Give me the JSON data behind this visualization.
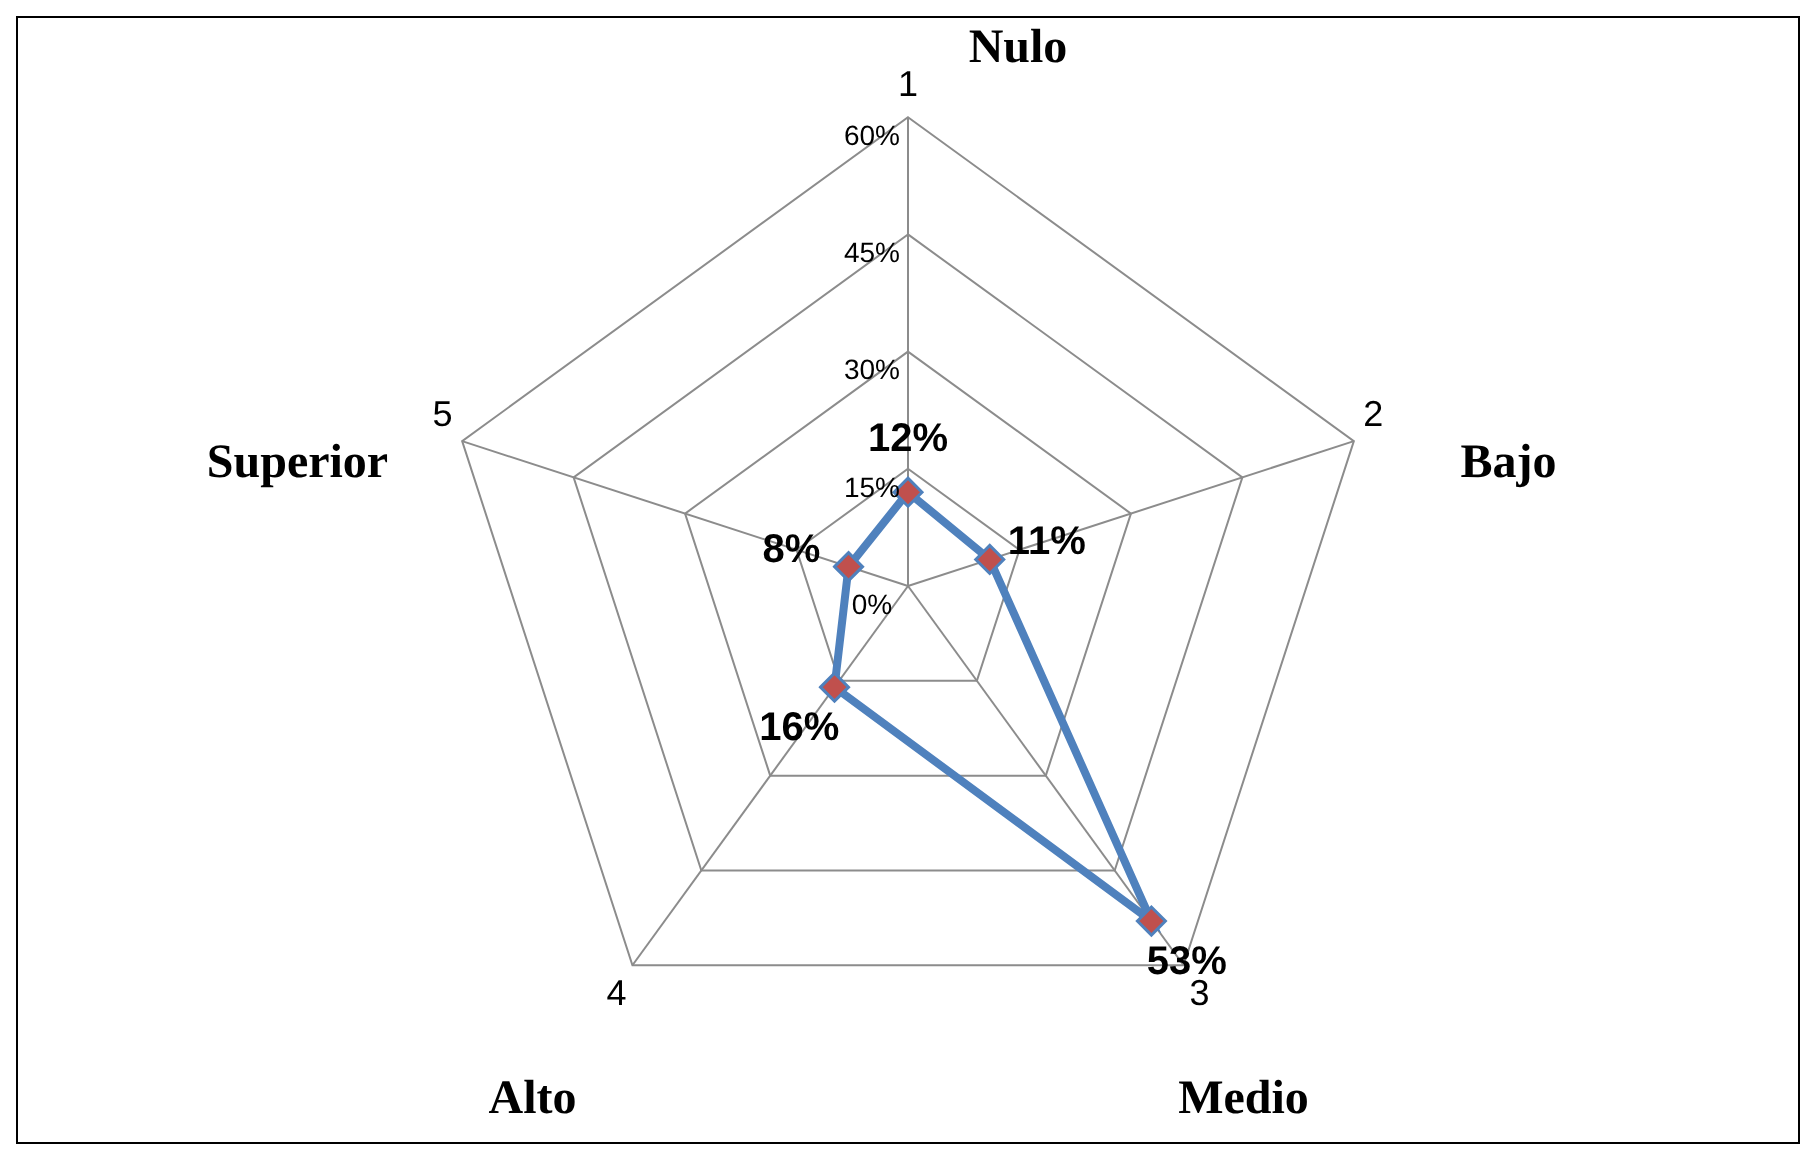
{
  "chart_data": {
    "type": "radar",
    "categories": [
      "1",
      "2",
      "3",
      "4",
      "5"
    ],
    "series": [
      {
        "color": "#4f81bd",
        "values": [
          12,
          11,
          53,
          16,
          8
        ]
      }
    ],
    "ylim": [
      0,
      60
    ],
    "yticks": [
      {
        "value": 0,
        "label": "0%"
      },
      {
        "value": 15,
        "label": "15%"
      },
      {
        "value": 30,
        "label": "30%"
      },
      {
        "value": 45,
        "label": "45%"
      },
      {
        "value": 60,
        "label": "60%"
      }
    ],
    "value_labels": [
      "12%",
      "11%",
      "53%",
      "16%",
      "8%"
    ],
    "marker": "diamond",
    "grid": true,
    "legend": false,
    "annotations": [
      "Nulo",
      "Bajo",
      "Medio",
      "Alto",
      "Superior"
    ]
  }
}
